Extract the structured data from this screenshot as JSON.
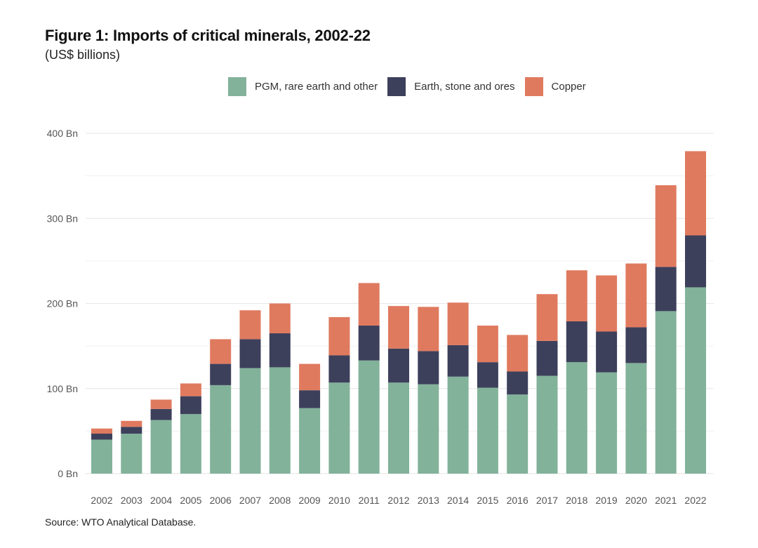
{
  "chart_data": {
    "type": "bar",
    "stacked": true,
    "title": "Figure 1: Imports of critical minerals, 2002-22",
    "subtitle": "(US$ billions)",
    "xlabel": "",
    "ylabel": "",
    "ylim": [
      0,
      400
    ],
    "yticks": [
      0,
      100,
      200,
      300,
      400
    ],
    "ytick_labels": [
      "0 Bn",
      "100 Bn",
      "200 Bn",
      "300 Bn",
      "400 Bn"
    ],
    "grid": true,
    "legend_position": "top-center",
    "categories": [
      "2002",
      "2003",
      "2004",
      "2005",
      "2006",
      "2007",
      "2008",
      "2009",
      "2010",
      "2011",
      "2012",
      "2013",
      "2014",
      "2015",
      "2016",
      "2017",
      "2018",
      "2019",
      "2020",
      "2021",
      "2022"
    ],
    "series": [
      {
        "name": "PGM, rare earth and other",
        "color": "#82b29a",
        "values": [
          40,
          47,
          63,
          70,
          104,
          124,
          125,
          77,
          107,
          133,
          107,
          105,
          114,
          101,
          93,
          115,
          131,
          119,
          130,
          191,
          219
        ]
      },
      {
        "name": "Earth, stone and ores",
        "color": "#3d405b",
        "values": [
          7,
          8,
          13,
          21,
          25,
          34,
          40,
          21,
          32,
          41,
          40,
          39,
          37,
          30,
          27,
          41,
          48,
          48,
          42,
          52,
          61
        ]
      },
      {
        "name": "Copper",
        "color": "#e07a5f",
        "values": [
          6,
          7,
          11,
          15,
          29,
          34,
          35,
          31,
          45,
          50,
          50,
          52,
          50,
          43,
          43,
          55,
          60,
          66,
          75,
          96,
          99
        ]
      }
    ],
    "source": "Source:  WTO  Analytical Database."
  }
}
